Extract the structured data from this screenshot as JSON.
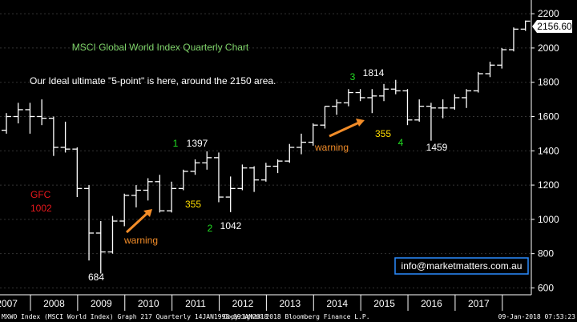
{
  "chart_data": {
    "type": "ohlc",
    "title": "MSCI Global World Index Quarterly Chart",
    "subtitle": "Our Ideal ultimate \"5-point\" is here, around the 2150 area.",
    "ylim": [
      560,
      2280
    ],
    "y_ticks": [
      {
        "value": 600,
        "label": "600"
      },
      {
        "value": 800,
        "label": "800"
      },
      {
        "value": 1000,
        "label": "1000"
      },
      {
        "value": 1200,
        "label": "1200"
      },
      {
        "value": 1400,
        "label": "1400"
      },
      {
        "value": 1600,
        "label": "1600"
      },
      {
        "value": 1800,
        "label": "1800"
      },
      {
        "value": 2000,
        "label": "2000"
      },
      {
        "value": 2200,
        "label": "2200"
      }
    ],
    "x_labels": [
      "2007",
      "2008",
      "2009",
      "2010",
      "2011",
      "2012",
      "2013",
      "2014",
      "2015",
      "2016",
      "2017"
    ],
    "last_price": {
      "value": 2156.6,
      "label": "2156.60"
    },
    "series": [
      {
        "q": "2007Q1",
        "o": 1520,
        "h": 1620,
        "l": 1500,
        "c": 1600
      },
      {
        "q": "2007Q2",
        "o": 1600,
        "h": 1680,
        "l": 1560,
        "c": 1640
      },
      {
        "q": "2007Q3",
        "o": 1640,
        "h": 1680,
        "l": 1500,
        "c": 1600
      },
      {
        "q": "2007Q4",
        "o": 1600,
        "h": 1700,
        "l": 1550,
        "c": 1590
      },
      {
        "q": "2008Q1",
        "o": 1590,
        "h": 1600,
        "l": 1370,
        "c": 1420
      },
      {
        "q": "2008Q2",
        "o": 1420,
        "h": 1570,
        "l": 1390,
        "c": 1410
      },
      {
        "q": "2008Q3",
        "o": 1410,
        "h": 1420,
        "l": 1130,
        "c": 1180
      },
      {
        "q": "2008Q4",
        "o": 1180,
        "h": 1200,
        "l": 760,
        "c": 920
      },
      {
        "q": "2009Q1",
        "o": 920,
        "h": 990,
        "l": 684,
        "c": 810
      },
      {
        "q": "2009Q2",
        "o": 810,
        "h": 1020,
        "l": 800,
        "c": 990
      },
      {
        "q": "2009Q3",
        "o": 990,
        "h": 1150,
        "l": 960,
        "c": 1140
      },
      {
        "q": "2009Q4",
        "o": 1140,
        "h": 1200,
        "l": 1070,
        "c": 1170
      },
      {
        "q": "2010Q1",
        "o": 1170,
        "h": 1240,
        "l": 1110,
        "c": 1220
      },
      {
        "q": "2010Q2",
        "o": 1220,
        "h": 1260,
        "l": 1040,
        "c": 1050
      },
      {
        "q": "2010Q3",
        "o": 1050,
        "h": 1220,
        "l": 1040,
        "c": 1180
      },
      {
        "q": "2010Q4",
        "o": 1180,
        "h": 1290,
        "l": 1170,
        "c": 1280
      },
      {
        "q": "2011Q1",
        "o": 1280,
        "h": 1350,
        "l": 1260,
        "c": 1330
      },
      {
        "q": "2011Q2",
        "o": 1330,
        "h": 1397,
        "l": 1290,
        "c": 1360
      },
      {
        "q": "2011Q3",
        "o": 1360,
        "h": 1390,
        "l": 1100,
        "c": 1130
      },
      {
        "q": "2011Q4",
        "o": 1130,
        "h": 1250,
        "l": 1042,
        "c": 1180
      },
      {
        "q": "2012Q1",
        "o": 1180,
        "h": 1320,
        "l": 1170,
        "c": 1300
      },
      {
        "q": "2012Q2",
        "o": 1300,
        "h": 1310,
        "l": 1160,
        "c": 1230
      },
      {
        "q": "2012Q3",
        "o": 1230,
        "h": 1330,
        "l": 1220,
        "c": 1310
      },
      {
        "q": "2012Q4",
        "o": 1310,
        "h": 1350,
        "l": 1270,
        "c": 1340
      },
      {
        "q": "2013Q1",
        "o": 1340,
        "h": 1440,
        "l": 1330,
        "c": 1420
      },
      {
        "q": "2013Q2",
        "o": 1420,
        "h": 1500,
        "l": 1380,
        "c": 1450
      },
      {
        "q": "2013Q3",
        "o": 1450,
        "h": 1560,
        "l": 1430,
        "c": 1550
      },
      {
        "q": "2013Q4",
        "o": 1550,
        "h": 1660,
        "l": 1530,
        "c": 1660
      },
      {
        "q": "2014Q1",
        "o": 1660,
        "h": 1700,
        "l": 1610,
        "c": 1680
      },
      {
        "q": "2014Q2",
        "o": 1680,
        "h": 1760,
        "l": 1660,
        "c": 1740
      },
      {
        "q": "2014Q3",
        "o": 1740,
        "h": 1760,
        "l": 1690,
        "c": 1710
      },
      {
        "q": "2014Q4",
        "o": 1710,
        "h": 1760,
        "l": 1620,
        "c": 1720
      },
      {
        "q": "2015Q1",
        "o": 1720,
        "h": 1790,
        "l": 1690,
        "c": 1760
      },
      {
        "q": "2015Q2",
        "o": 1760,
        "h": 1814,
        "l": 1730,
        "c": 1750
      },
      {
        "q": "2015Q3",
        "o": 1750,
        "h": 1760,
        "l": 1550,
        "c": 1580
      },
      {
        "q": "2015Q4",
        "o": 1580,
        "h": 1700,
        "l": 1570,
        "c": 1660
      },
      {
        "q": "2016Q1",
        "o": 1660,
        "h": 1680,
        "l": 1459,
        "c": 1650
      },
      {
        "q": "2016Q2",
        "o": 1650,
        "h": 1700,
        "l": 1590,
        "c": 1650
      },
      {
        "q": "2016Q3",
        "o": 1650,
        "h": 1730,
        "l": 1640,
        "c": 1710
      },
      {
        "q": "2016Q4",
        "o": 1710,
        "h": 1760,
        "l": 1650,
        "c": 1750
      },
      {
        "q": "2017Q1",
        "o": 1750,
        "h": 1860,
        "l": 1740,
        "c": 1850
      },
      {
        "q": "2017Q2",
        "o": 1850,
        "h": 1920,
        "l": 1830,
        "c": 1900
      },
      {
        "q": "2017Q3",
        "o": 1900,
        "h": 2000,
        "l": 1880,
        "c": 1990
      },
      {
        "q": "2017Q4",
        "o": 1990,
        "h": 2120,
        "l": 1980,
        "c": 2110
      },
      {
        "q": "2018Q1",
        "o": 2110,
        "h": 2160,
        "l": 2100,
        "c": 2156.6
      }
    ],
    "annotations": [
      {
        "text": "GFC",
        "color": "#e8181c"
      },
      {
        "text": "1002",
        "color": "#e8181c"
      },
      {
        "text": "684",
        "color": "#ffffff"
      },
      {
        "text": "1",
        "color": "#22dd22"
      },
      {
        "text": "1397",
        "color": "#ffffff"
      },
      {
        "text": "355",
        "color": "#ffdd00"
      },
      {
        "text": "2",
        "color": "#22dd22"
      },
      {
        "text": "1042",
        "color": "#ffffff"
      },
      {
        "text": "warning",
        "color": "#f28c28"
      },
      {
        "text": "warning",
        "color": "#f28c28"
      },
      {
        "text": "3",
        "color": "#22dd22"
      },
      {
        "text": "1814",
        "color": "#ffffff"
      },
      {
        "text": "355",
        "color": "#ffdd00"
      },
      {
        "text": "4",
        "color": "#22dd22"
      },
      {
        "text": "1459",
        "color": "#ffffff"
      }
    ],
    "colors": {
      "bars": "#ffffff",
      "background": "#000000",
      "title": "#7fd46a",
      "subtitle": "#ffffff",
      "axis": "#ffffff",
      "arrow": "#f28c28"
    }
  },
  "watermark": "info@marketmatters.com.au",
  "footer": {
    "left": "MXWO Index (MSCI World Index) Graph 217  Quarterly 14JAN1998-09JAN2018",
    "center": "Copyright© 2018 Bloomberg Finance L.P.",
    "right": "09-Jan-2018 07:53:23"
  }
}
